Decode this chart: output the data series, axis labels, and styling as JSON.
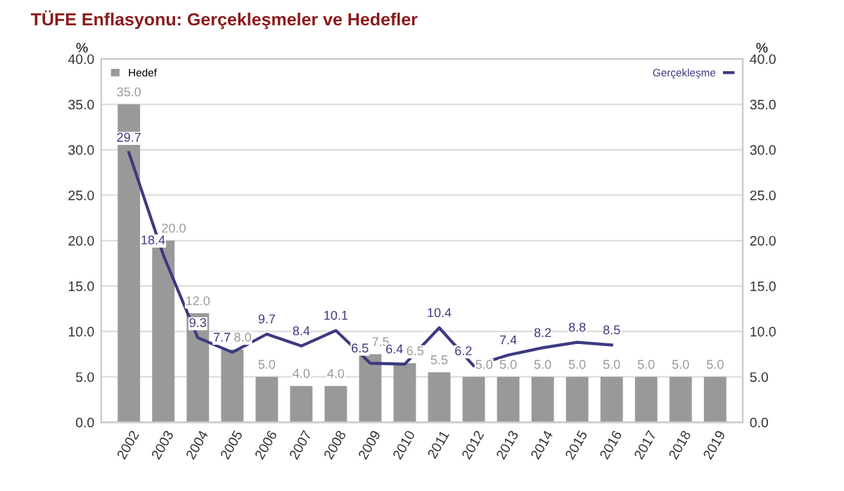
{
  "chart_data": {
    "type": "bar",
    "title": "TÜFE Enflasyonu: Gerçekleşmeler ve Hedefler",
    "ylabel": "%",
    "y2label": "%",
    "categories": [
      "2002",
      "2003",
      "2004",
      "2005",
      "2006",
      "2007",
      "2008",
      "2009",
      "2010",
      "2011",
      "2012",
      "2013",
      "2014",
      "2015",
      "2016",
      "2017",
      "2018",
      "2019"
    ],
    "series": [
      {
        "name": "Hedef",
        "color": "#999999",
        "values": [
          35.0,
          20.0,
          12.0,
          8.0,
          5.0,
          4.0,
          4.0,
          7.5,
          6.5,
          5.5,
          5.0,
          5.0,
          5.0,
          5.0,
          5.0,
          5.0,
          5.0,
          5.0
        ],
        "value_labels": [
          "35.0",
          "20.0",
          "12.0",
          "8.0",
          "5.0",
          "4.0",
          "4.0",
          "7.5",
          "6.5",
          "5.5",
          "5.0",
          "5.0",
          "5.0",
          "5.0",
          "5.0",
          "5.0",
          "5.0",
          "5.0"
        ]
      },
      {
        "name": "Gerçekleşme",
        "type": "line",
        "axis": "y2",
        "color": "#3b3a80",
        "values": [
          29.7,
          18.4,
          9.3,
          7.7,
          9.7,
          8.4,
          10.1,
          6.5,
          6.4,
          10.4,
          6.2,
          7.4,
          8.2,
          8.8,
          8.5,
          null,
          null,
          null
        ],
        "value_labels": [
          "29.7",
          "18.4",
          "9.3",
          "7.7",
          "9.7",
          "8.4",
          "10.1",
          "6.5",
          "6.4",
          "10.4",
          "6.2",
          "7.4",
          "8.2",
          "8.8",
          "8.5",
          null,
          null,
          null
        ]
      }
    ],
    "ylim": [
      0,
      40
    ],
    "yticks": [
      {
        "value": 0,
        "label": "0.0"
      },
      {
        "value": 5,
        "label": "5.0"
      },
      {
        "value": 10,
        "label": "10.0"
      },
      {
        "value": 15,
        "label": "15.0"
      },
      {
        "value": 20,
        "label": "20.0"
      },
      {
        "value": 25,
        "label": "25.0"
      },
      {
        "value": 30,
        "label": "30.0"
      },
      {
        "value": 35,
        "label": "35.0"
      },
      {
        "value": 40,
        "label": "40.0"
      }
    ],
    "y2lim": [
      0,
      40
    ],
    "y2ticks": [
      {
        "value": 0,
        "label": "0.0"
      },
      {
        "value": 5,
        "label": "5.0"
      },
      {
        "value": 10,
        "label": "10.0"
      },
      {
        "value": 15,
        "label": "15.0"
      },
      {
        "value": 20,
        "label": "20.0"
      },
      {
        "value": 25,
        "label": "25.0"
      },
      {
        "value": 30,
        "label": "30.0"
      },
      {
        "value": 35,
        "label": "35.0"
      },
      {
        "value": 40,
        "label": "40.0"
      }
    ],
    "grid": "y",
    "legend": "top",
    "marker": "none",
    "line_style": "solid"
  }
}
